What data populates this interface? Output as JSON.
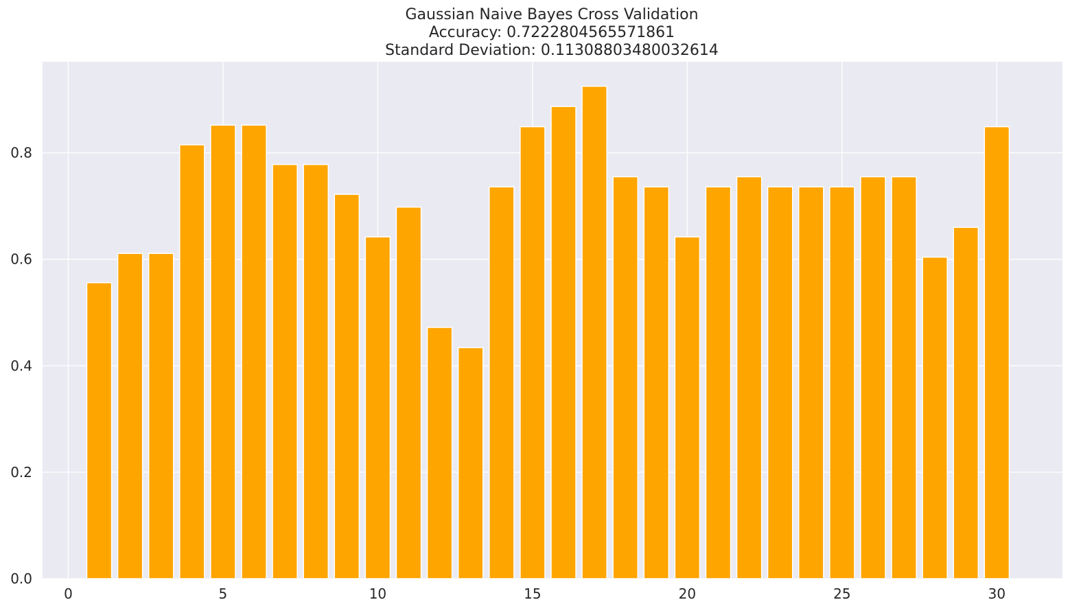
{
  "chart_data": {
    "type": "bar",
    "title": [
      "Gaussian Naive Bayes Cross Validation",
      "Accuracy: 0.7222804565571861",
      "Standard Deviation: 0.11308803480032614"
    ],
    "xlabel": "",
    "ylabel": "",
    "x": [
      1,
      2,
      3,
      4,
      5,
      6,
      7,
      8,
      9,
      10,
      11,
      12,
      13,
      14,
      15,
      16,
      17,
      18,
      19,
      20,
      21,
      22,
      23,
      24,
      25,
      26,
      27,
      28,
      29,
      30
    ],
    "values": [
      0.556,
      0.611,
      0.611,
      0.815,
      0.852,
      0.852,
      0.778,
      0.778,
      0.722,
      0.642,
      0.698,
      0.472,
      0.434,
      0.736,
      0.849,
      0.887,
      0.925,
      0.755,
      0.736,
      0.642,
      0.736,
      0.755,
      0.736,
      0.736,
      0.736,
      0.755,
      0.755,
      0.604,
      0.66,
      0.849
    ],
    "xlim": [
      -0.83,
      32.12
    ],
    "ylim": [
      0,
      0.971
    ],
    "xticks": [
      0,
      5,
      10,
      15,
      20,
      25,
      30
    ],
    "yticks": [
      0.0,
      0.2,
      0.4,
      0.6,
      0.8
    ],
    "ytick_labels": [
      "0.0",
      "0.2",
      "0.4",
      "0.6",
      "0.8"
    ],
    "grid": true,
    "bar_color": "#ffa500",
    "background_color": "#eaeaf2"
  }
}
